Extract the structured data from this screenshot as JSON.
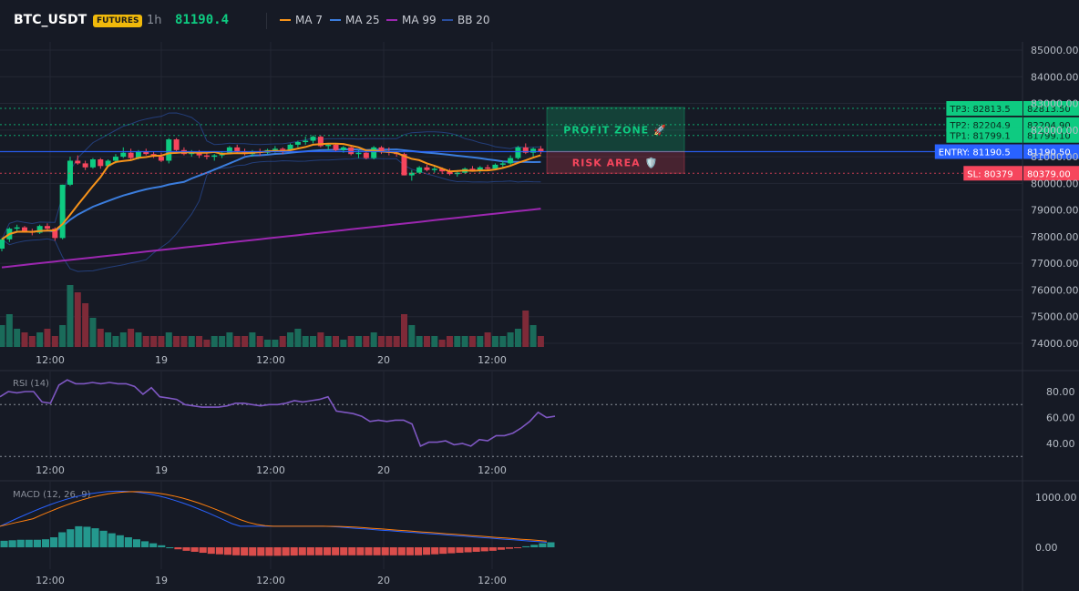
{
  "header": {
    "symbol": "BTC_USDT",
    "badge": "FUTURES",
    "timeframe": "1h",
    "price": "81190.4",
    "legend": [
      {
        "label": "MA 7",
        "color": "#f7931a"
      },
      {
        "label": "MA 25",
        "color": "#3b7ddd"
      },
      {
        "label": "MA 99",
        "color": "#9c27b0"
      },
      {
        "label": "BB 20",
        "color": "#2a4f9e"
      }
    ]
  },
  "zones": {
    "profit": "PROFIT ZONE 🚀",
    "risk": "RISK AREA 🛡️"
  },
  "levels": [
    {
      "key": "tp3",
      "label": "TP3: 82813.5",
      "axis": "82813.50",
      "price": 82813.5,
      "color": "#0ecb81"
    },
    {
      "key": "tp2",
      "label": "TP2: 82204.9",
      "axis": "82204.90",
      "price": 82204.9,
      "color": "#0ecb81"
    },
    {
      "key": "tp1",
      "label": "TP1: 81799.1",
      "axis": "81799.10",
      "price": 81799.1,
      "color": "#0ecb81"
    },
    {
      "key": "entry",
      "label": "ENTRY: 81190.5",
      "axis": "81190.50",
      "price": 81190.5,
      "color": "#2962ff"
    },
    {
      "key": "sl",
      "label": "SL: 80379",
      "axis": "80379.00",
      "price": 80379,
      "color": "#f6465d"
    }
  ],
  "chart_data": [
    {
      "type": "candlestick",
      "ylim": [
        73800,
        85300
      ],
      "y_ticks": [
        "85000.00",
        "84000.00",
        "83000.00",
        "82000.00",
        "81000.00",
        "80000.00",
        "79000.00",
        "78000.00",
        "77000.00",
        "76000.00",
        "75000.00",
        "74000.00"
      ],
      "x_ticks": [
        "12:00",
        "19",
        "12:00",
        "20",
        "12:00"
      ],
      "candles": [
        [
          77550,
          77950,
          77450,
          77900
        ],
        [
          77900,
          78350,
          77800,
          78300
        ],
        [
          78300,
          78450,
          78200,
          78350
        ],
        [
          78350,
          78400,
          78150,
          78200
        ],
        [
          78200,
          78300,
          78050,
          78150
        ],
        [
          78150,
          78450,
          78100,
          78400
        ],
        [
          78400,
          78500,
          78250,
          78300
        ],
        [
          78300,
          78350,
          77850,
          77950
        ],
        [
          77950,
          79950,
          77900,
          79950
        ],
        [
          79950,
          81000,
          79900,
          80850
        ],
        [
          80850,
          81050,
          80700,
          80750
        ],
        [
          80750,
          80850,
          80500,
          80600
        ],
        [
          80600,
          80950,
          80550,
          80900
        ],
        [
          80900,
          80950,
          80550,
          80650
        ],
        [
          80650,
          80900,
          80600,
          80850
        ],
        [
          80850,
          81100,
          80750,
          81000
        ],
        [
          81000,
          81350,
          80950,
          81150
        ],
        [
          81150,
          81300,
          80900,
          80950
        ],
        [
          80950,
          81250,
          80900,
          81200
        ],
        [
          81200,
          81300,
          81050,
          81100
        ],
        [
          81100,
          81200,
          80950,
          81000
        ],
        [
          81000,
          81150,
          80800,
          80850
        ],
        [
          80850,
          81700,
          80750,
          81650
        ],
        [
          81650,
          81700,
          81200,
          81250
        ],
        [
          81250,
          81350,
          81050,
          81100
        ],
        [
          81100,
          81250,
          81000,
          81150
        ],
        [
          81150,
          81250,
          80950,
          81050
        ],
        [
          81050,
          81150,
          80900,
          81000
        ],
        [
          81000,
          81100,
          80850,
          81050
        ],
        [
          81050,
          81200,
          80950,
          81150
        ],
        [
          81150,
          81400,
          81100,
          81350
        ],
        [
          81350,
          81450,
          81150,
          81200
        ],
        [
          81200,
          81300,
          81050,
          81100
        ],
        [
          81100,
          81250,
          81000,
          81200
        ],
        [
          81200,
          81300,
          81050,
          81150
        ],
        [
          81150,
          81300,
          81100,
          81250
        ],
        [
          81250,
          81400,
          81150,
          81300
        ],
        [
          81300,
          81350,
          81100,
          81250
        ],
        [
          81250,
          81500,
          81200,
          81450
        ],
        [
          81450,
          81600,
          81350,
          81550
        ],
        [
          81550,
          81750,
          81450,
          81600
        ],
        [
          81600,
          81800,
          81500,
          81750
        ],
        [
          81750,
          81800,
          81350,
          81400
        ],
        [
          81400,
          81500,
          81250,
          81450
        ],
        [
          81450,
          81500,
          81200,
          81250
        ],
        [
          81250,
          81400,
          81150,
          81350
        ],
        [
          81350,
          81400,
          81050,
          81100
        ],
        [
          81100,
          81250,
          80950,
          81150
        ],
        [
          81150,
          81200,
          80900,
          80950
        ],
        [
          80950,
          81400,
          80900,
          81350
        ],
        [
          81350,
          81400,
          81100,
          81200
        ],
        [
          81200,
          81350,
          81050,
          81150
        ],
        [
          81150,
          81200,
          81000,
          81100
        ],
        [
          81100,
          81150,
          80300,
          80300
        ],
        [
          80300,
          80500,
          80100,
          80400
        ],
        [
          80400,
          80650,
          80350,
          80600
        ],
        [
          80600,
          80700,
          80450,
          80500
        ],
        [
          80500,
          80650,
          80400,
          80550
        ],
        [
          80550,
          80600,
          80350,
          80450
        ],
        [
          80450,
          80550,
          80300,
          80350
        ],
        [
          80350,
          80500,
          80250,
          80400
        ],
        [
          80400,
          80600,
          80350,
          80550
        ],
        [
          80550,
          80650,
          80450,
          80500
        ],
        [
          80500,
          80650,
          80400,
          80600
        ],
        [
          80600,
          80700,
          80500,
          80550
        ],
        [
          80550,
          80750,
          80500,
          80700
        ],
        [
          80700,
          80850,
          80600,
          80750
        ],
        [
          80750,
          81050,
          80700,
          80950
        ],
        [
          80950,
          81400,
          80900,
          81350
        ],
        [
          81350,
          81500,
          81100,
          81150
        ],
        [
          81150,
          81350,
          81000,
          81300
        ],
        [
          81300,
          81400,
          81100,
          81200
        ]
      ],
      "volume": [
        6,
        9,
        5,
        4,
        3,
        4,
        5,
        3,
        6,
        17,
        15,
        12,
        8,
        5,
        4,
        3,
        4,
        5,
        4,
        3,
        3,
        3,
        4,
        3,
        3,
        3,
        3,
        2,
        3,
        3,
        4,
        3,
        3,
        4,
        3,
        2,
        2,
        3,
        4,
        5,
        3,
        3,
        4,
        3,
        3,
        2,
        3,
        3,
        3,
        4,
        3,
        3,
        3,
        9,
        6,
        3,
        3,
        3,
        2,
        3,
        3,
        3,
        3,
        3,
        4,
        3,
        3,
        4,
        5,
        10,
        6,
        3
      ]
    },
    {
      "type": "line",
      "name": "RSI (14)",
      "y_ticks": [
        "80.00",
        "60.00",
        "40.00"
      ],
      "x_ticks": [
        "12:00",
        "19",
        "12:00",
        "20",
        "12:00"
      ],
      "values": [
        76,
        80,
        79,
        80,
        80,
        72,
        71,
        85,
        89,
        86,
        86,
        87,
        86,
        87,
        86,
        86,
        84,
        78,
        83,
        76,
        75,
        74,
        70,
        69,
        68,
        68,
        68,
        69,
        71,
        71,
        70,
        69,
        70,
        70,
        71,
        73,
        72,
        73,
        74,
        76,
        65,
        64,
        63,
        61,
        57,
        58,
        57,
        58,
        58,
        55,
        38,
        41,
        41,
        42,
        39,
        40,
        38,
        43,
        42,
        46,
        46,
        48,
        52,
        57,
        64,
        60,
        61
      ]
    },
    {
      "type": "bar",
      "name": "MACD (12, 26, 9)",
      "y_ticks": [
        "1000.00",
        "0.00"
      ],
      "x_ticks": [
        "12:00",
        "19",
        "12:00",
        "20",
        "12:00"
      ],
      "histogram": [
        130,
        140,
        150,
        150,
        150,
        160,
        200,
        300,
        360,
        420,
        410,
        380,
        330,
        280,
        240,
        200,
        160,
        120,
        80,
        40,
        0,
        -40,
        -70,
        -90,
        -110,
        -130,
        -140,
        -150,
        -160,
        -165,
        -170,
        -170,
        -170,
        -170,
        -168,
        -165,
        -160,
        -160,
        -160,
        -160,
        -160,
        -160,
        -160,
        -160,
        -160,
        -160,
        -160,
        -160,
        -160,
        -160,
        -160,
        -150,
        -140,
        -130,
        -120,
        -110,
        -100,
        -90,
        -80,
        -70,
        -50,
        -30,
        -10,
        20,
        50,
        80,
        100
      ]
    }
  ]
}
